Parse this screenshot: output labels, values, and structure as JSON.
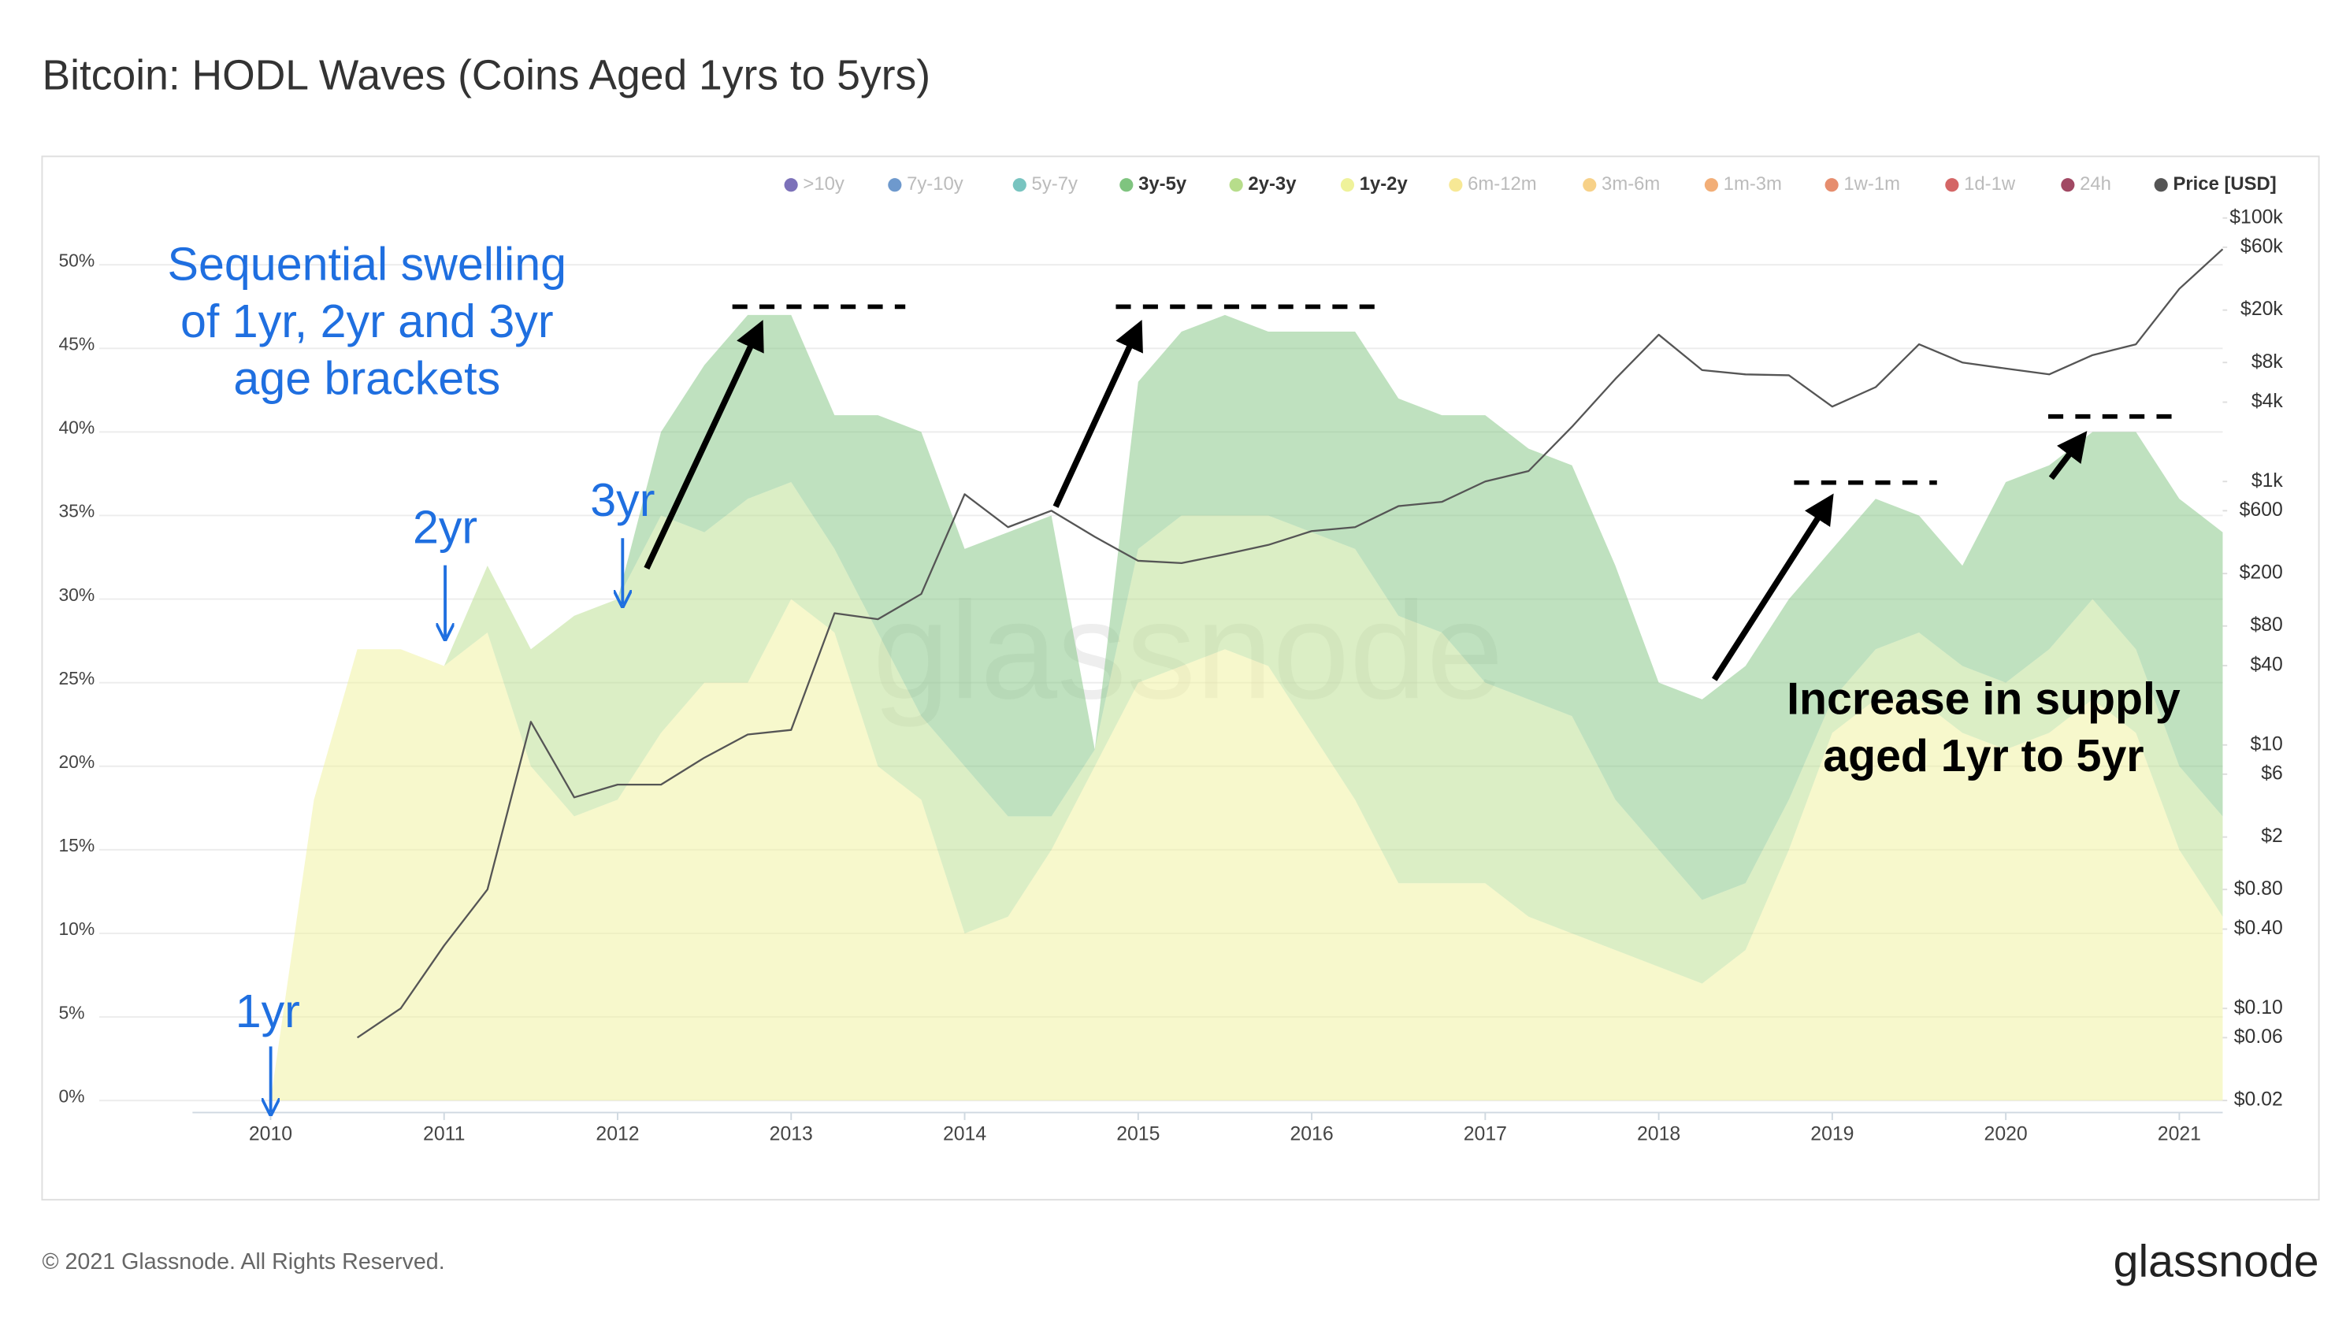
{
  "chart_data": {
    "type": "area",
    "title": "Bitcoin: HODL Waves (Coins Aged 1yrs to 5yrs)",
    "watermark": "glassnode",
    "footer": "© 2021 Glassnode. All Rights Reserved.",
    "logo": "glassnode",
    "stacked": true,
    "grid": true,
    "legend": "top-right",
    "area_opacity": 0.5,
    "x": [
      2010,
      2010.25,
      2010.5,
      2010.75,
      2011,
      2011.25,
      2011.5,
      2011.75,
      2012,
      2012.25,
      2012.5,
      2012.75,
      2013,
      2013.25,
      2013.5,
      2013.75,
      2014,
      2014.25,
      2014.5,
      2014.75,
      2015,
      2015.25,
      2015.5,
      2015.75,
      2016,
      2016.25,
      2016.5,
      2016.75,
      2017,
      2017.25,
      2017.5,
      2017.75,
      2018,
      2018.25,
      2018.5,
      2018.75,
      2019,
      2019.25,
      2019.5,
      2019.75,
      2020,
      2020.25,
      2020.5,
      2020.75,
      2021,
      2021.25
    ],
    "xlim": [
      2009.55,
      2021.25
    ],
    "xticks": [
      2010,
      2011,
      2012,
      2013,
      2014,
      2015,
      2016,
      2017,
      2018,
      2019,
      2020,
      2021
    ],
    "ylim": [
      0,
      52.8
    ],
    "yticks": [
      {
        "value": 0,
        "label": "0%"
      },
      {
        "value": 5,
        "label": "5%"
      },
      {
        "value": 10,
        "label": "10%"
      },
      {
        "value": 15,
        "label": "15%"
      },
      {
        "value": 20,
        "label": "20%"
      },
      {
        "value": 25,
        "label": "25%"
      },
      {
        "value": 30,
        "label": "30%"
      },
      {
        "value": 35,
        "label": "35%"
      },
      {
        "value": 40,
        "label": "40%"
      },
      {
        "value": 45,
        "label": "45%"
      },
      {
        "value": 50,
        "label": "50%"
      }
    ],
    "y2_log": true,
    "y2lim": [
      0.02,
      100000
    ],
    "y2ticks": [
      {
        "value": 0.02,
        "label": "$0.02"
      },
      {
        "value": 0.06,
        "label": "$0.06"
      },
      {
        "value": 0.1,
        "label": "$0.10"
      },
      {
        "value": 0.4,
        "label": "$0.40"
      },
      {
        "value": 0.8,
        "label": "$0.80"
      },
      {
        "value": 2,
        "label": "$2"
      },
      {
        "value": 6,
        "label": "$6"
      },
      {
        "value": 10,
        "label": "$10"
      },
      {
        "value": 40,
        "label": "$40"
      },
      {
        "value": 80,
        "label": "$80"
      },
      {
        "value": 200,
        "label": "$200"
      },
      {
        "value": 600,
        "label": "$600"
      },
      {
        "value": 1000,
        "label": "$1k"
      },
      {
        "value": 4000,
        "label": "$4k"
      },
      {
        "value": 8000,
        "label": "$8k"
      },
      {
        "value": 20000,
        "label": "$20k"
      },
      {
        "value": 60000,
        "label": "$60k"
      },
      {
        "value": 100000,
        "label": "$100k"
      }
    ],
    "series": [
      {
        "name": ">10y",
        "color": "#5b4ea8",
        "visible": false
      },
      {
        "name": "7y-10y",
        "color": "#4a7fc0",
        "visible": false
      },
      {
        "name": "5y-7y",
        "color": "#56b5b0",
        "visible": false
      },
      {
        "name": "3y-5y",
        "color": "#7fc47f",
        "visible": true,
        "values": [
          0,
          0,
          0,
          0,
          0,
          0,
          0,
          0,
          0,
          5,
          10,
          11,
          10,
          8,
          13,
          17,
          13,
          17,
          18,
          0,
          10,
          11,
          12,
          11,
          12,
          13,
          13,
          13,
          16,
          15,
          15,
          14,
          10,
          12,
          13,
          12,
          9,
          9,
          7,
          6,
          12,
          11,
          10,
          13,
          16,
          17
        ]
      },
      {
        "name": "2y-3y",
        "color": "#b7dd8b",
        "visible": true,
        "values": [
          0,
          0,
          0,
          0,
          0,
          4,
          7,
          12,
          12,
          13,
          9,
          11,
          7,
          5,
          8,
          5,
          10,
          6,
          2,
          1,
          8,
          9,
          8,
          9,
          12,
          15,
          16,
          15,
          12,
          13,
          13,
          9,
          7,
          5,
          4,
          3,
          2,
          3,
          4,
          4,
          4,
          5,
          6,
          5,
          5,
          6
        ]
      },
      {
        "name": "1y-2y",
        "color": "#eff29a",
        "visible": true,
        "values": [
          0,
          18,
          27,
          27,
          26,
          28,
          20,
          17,
          18,
          22,
          25,
          25,
          30,
          28,
          20,
          18,
          10,
          11,
          15,
          20,
          25,
          26,
          27,
          26,
          22,
          18,
          13,
          13,
          13,
          11,
          10,
          9,
          8,
          7,
          9,
          15,
          22,
          24,
          24,
          22,
          21,
          22,
          24,
          22,
          15,
          11
        ]
      },
      {
        "name": "6m-12m",
        "color": "#f5e27a",
        "visible": false
      },
      {
        "name": "3m-6m",
        "color": "#f5c66a",
        "visible": false
      },
      {
        "name": "1m-3m",
        "color": "#ef9a55",
        "visible": false
      },
      {
        "name": "1w-1m",
        "color": "#e0704a",
        "visible": false
      },
      {
        "name": "1d-1w",
        "color": "#c94040",
        "visible": false
      },
      {
        "name": "24h",
        "color": "#8a1a3c",
        "visible": false
      },
      {
        "name": "Price [USD]",
        "color": "#555555",
        "visible": true,
        "axis": "y2",
        "values": [
          null,
          null,
          0.06,
          0.1,
          0.3,
          0.8,
          15,
          4,
          5,
          5,
          8,
          12,
          13,
          100,
          90,
          140,
          800,
          450,
          600,
          380,
          250,
          240,
          280,
          330,
          420,
          450,
          650,
          700,
          1000,
          1200,
          2600,
          6000,
          13000,
          7000,
          6500,
          6400,
          3700,
          5200,
          11000,
          8000,
          7200,
          6500,
          9100,
          11000,
          29000,
          58000
        ]
      }
    ],
    "annotations": [
      {
        "lines": [
          "Sequential swelling",
          "of 1yr, 2yr and 3yr",
          "age brackets"
        ]
      },
      {
        "lines": [
          "1yr"
        ]
      },
      {
        "lines": [
          "2yr"
        ]
      },
      {
        "lines": [
          "3yr"
        ]
      },
      {
        "lines": [
          "Increase in supply",
          "aged 1yr to 5yr"
        ]
      }
    ]
  }
}
